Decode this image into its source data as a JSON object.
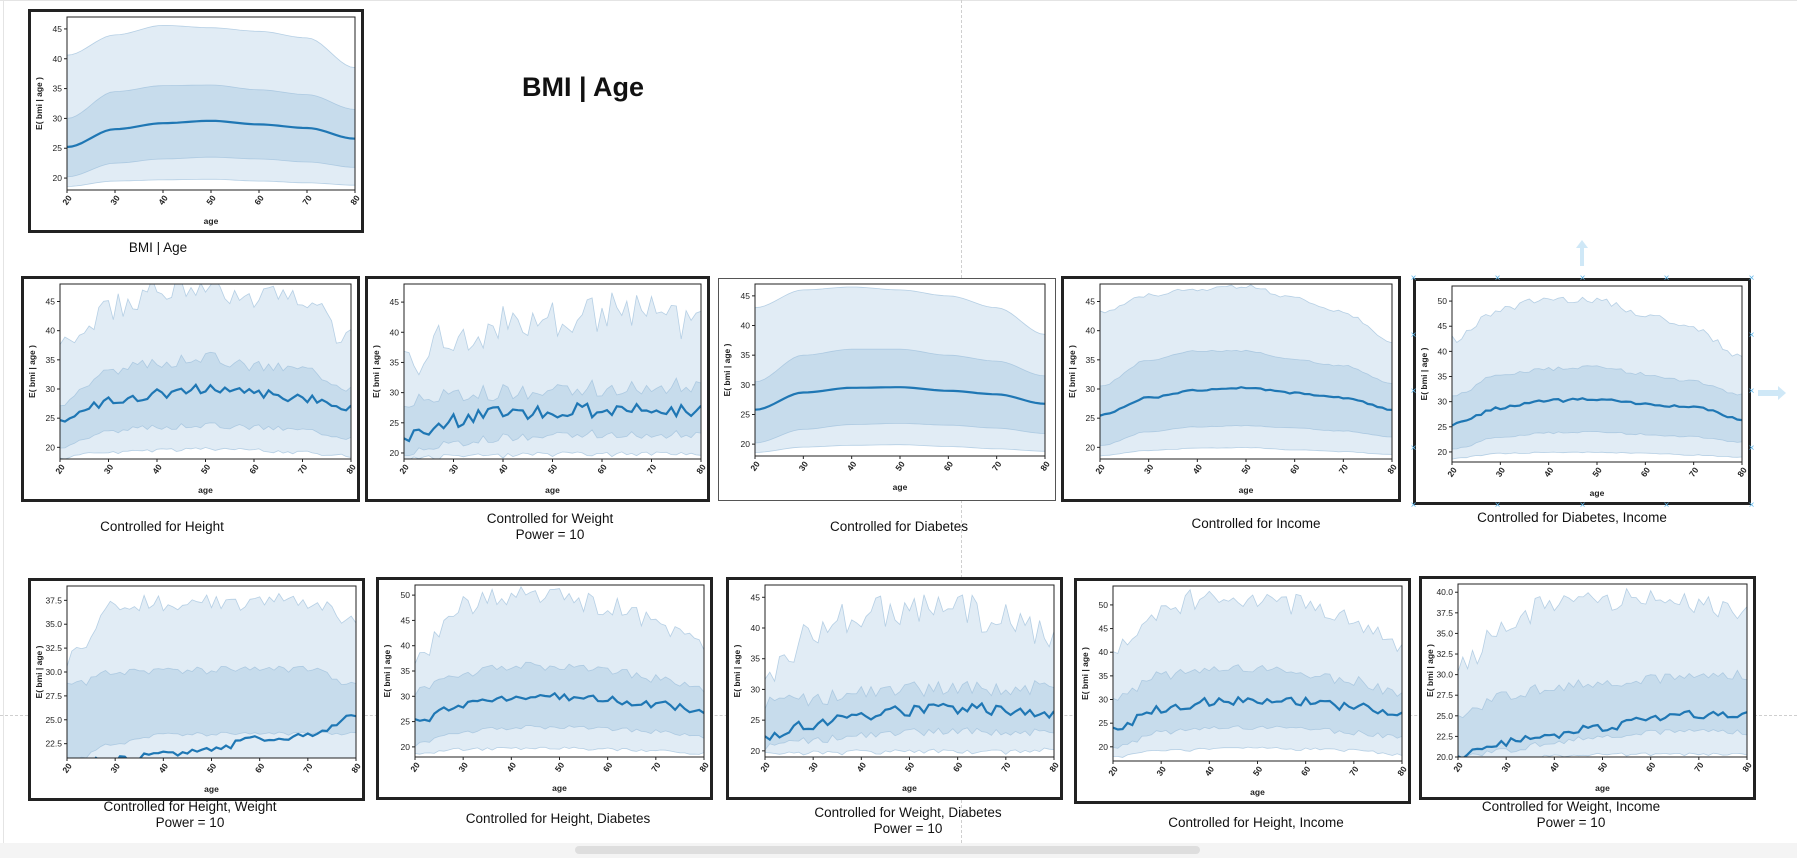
{
  "page": {
    "title": "BMI | Age"
  },
  "chart_data": [
    {
      "id": "main",
      "type": "line",
      "thin": false,
      "caption": [
        "BMI | Age"
      ],
      "xlabel": "age",
      "ylabel": "E( bmi | age )",
      "xlim": [
        20,
        80
      ],
      "ylim": [
        18,
        47
      ],
      "xticks": [
        20,
        30,
        40,
        50,
        60,
        70,
        80
      ],
      "yticks": [
        20,
        25,
        30,
        35,
        40,
        45
      ],
      "x": [
        20,
        30,
        40,
        50,
        60,
        70,
        80
      ],
      "mean": [
        25.2,
        28.2,
        29.2,
        29.6,
        29.0,
        28.4,
        26.6
      ],
      "inner": [
        [
          20.2,
          30.0
        ],
        [
          22.5,
          34.5
        ],
        [
          23.2,
          35.5
        ],
        [
          23.5,
          35.6
        ],
        [
          23.2,
          34.8
        ],
        [
          22.7,
          34.0
        ],
        [
          21.8,
          31.5
        ]
      ],
      "outer": [
        [
          18.6,
          40.6
        ],
        [
          19.5,
          44.0
        ],
        [
          19.7,
          45.6
        ],
        [
          19.8,
          45.2
        ],
        [
          19.5,
          44.6
        ],
        [
          19.2,
          43.5
        ],
        [
          18.8,
          38.5
        ]
      ],
      "noise": 0
    },
    {
      "id": "height",
      "type": "line",
      "thin": false,
      "caption": [
        "Controlled for Height"
      ],
      "xlabel": "age",
      "ylabel": "E( bmi | age )",
      "xlim": [
        20,
        80
      ],
      "ylim": [
        18,
        48
      ],
      "xticks": [
        20,
        30,
        40,
        50,
        60,
        70,
        80
      ],
      "yticks": [
        20,
        25,
        30,
        35,
        40,
        45
      ],
      "x": [
        20,
        30,
        40,
        50,
        60,
        70,
        80
      ],
      "mean": [
        24.5,
        27.8,
        29.2,
        30.0,
        29.2,
        28.5,
        26.6
      ],
      "inner": [
        [
          20.3,
          28.0
        ],
        [
          22.7,
          33.0
        ],
        [
          23.5,
          34.5
        ],
        [
          23.8,
          35.5
        ],
        [
          23.5,
          34.0
        ],
        [
          23.0,
          33.5
        ],
        [
          21.8,
          30.5
        ]
      ],
      "outer": [
        [
          18.5,
          36.0
        ],
        [
          19.5,
          43.0
        ],
        [
          19.8,
          46.0
        ],
        [
          20.0,
          46.5
        ],
        [
          19.8,
          45.0
        ],
        [
          19.4,
          44.0
        ],
        [
          18.8,
          37.5
        ]
      ],
      "noise": 1.4
    },
    {
      "id": "weight",
      "type": "line",
      "thin": false,
      "caption": [
        "Controlled for Weight",
        "Power = 10"
      ],
      "xlabel": "age",
      "ylabel": "E( bmi | age )",
      "xlim": [
        20,
        80
      ],
      "ylim": [
        19,
        48
      ],
      "xticks": [
        20,
        30,
        40,
        50,
        60,
        70,
        80
      ],
      "yticks": [
        20,
        25,
        30,
        35,
        40,
        45
      ],
      "x": [
        20,
        30,
        40,
        50,
        60,
        70,
        80
      ],
      "mean": [
        22.5,
        25.3,
        26.5,
        27.0,
        27.1,
        27.0,
        26.8
      ],
      "inner": [
        [
          20.0,
          28.5
        ],
        [
          21.5,
          29.5
        ],
        [
          22.5,
          30.0
        ],
        [
          23.0,
          30.5
        ],
        [
          23.2,
          30.8
        ],
        [
          23.0,
          31.0
        ],
        [
          23.0,
          31.0
        ]
      ],
      "outer": [
        [
          19.3,
          34.0
        ],
        [
          19.8,
          38.0
        ],
        [
          20.0,
          40.0
        ],
        [
          20.2,
          41.0
        ],
        [
          20.3,
          42.0
        ],
        [
          20.2,
          43.0
        ],
        [
          20.5,
          39.0
        ]
      ],
      "noise": 2.0
    },
    {
      "id": "diabetes",
      "type": "line",
      "thin": true,
      "caption": [
        "Controlled for Diabetes"
      ],
      "xlabel": "age",
      "ylabel": "E( bmi | age )",
      "xlim": [
        20,
        80
      ],
      "ylim": [
        18,
        47
      ],
      "xticks": [
        20,
        30,
        40,
        50,
        60,
        70,
        80
      ],
      "yticks": [
        20,
        25,
        30,
        35,
        40,
        45
      ],
      "x": [
        20,
        30,
        40,
        50,
        60,
        70,
        80
      ],
      "mean": [
        25.8,
        28.7,
        29.5,
        29.6,
        29.0,
        28.4,
        26.8
      ],
      "inner": [
        [
          20.2,
          30.5
        ],
        [
          22.5,
          35.0
        ],
        [
          23.3,
          36.0
        ],
        [
          23.5,
          36.0
        ],
        [
          23.2,
          35.0
        ],
        [
          22.7,
          34.0
        ],
        [
          21.8,
          31.5
        ]
      ],
      "outer": [
        [
          18.6,
          43.0
        ],
        [
          19.5,
          46.0
        ],
        [
          19.8,
          46.5
        ],
        [
          19.9,
          46.0
        ],
        [
          19.6,
          45.0
        ],
        [
          19.2,
          43.0
        ],
        [
          18.8,
          38.5
        ]
      ],
      "noise": 0
    },
    {
      "id": "income",
      "type": "line",
      "thin": false,
      "caption": [
        "Controlled for Income"
      ],
      "xlabel": "age",
      "ylabel": "E( bmi | age )",
      "xlim": [
        20,
        80
      ],
      "ylim": [
        18,
        48
      ],
      "xticks": [
        20,
        30,
        40,
        50,
        60,
        70,
        80
      ],
      "yticks": [
        20,
        25,
        30,
        35,
        40,
        45
      ],
      "x": [
        20,
        30,
        40,
        50,
        60,
        70,
        80
      ],
      "mean": [
        25.5,
        28.5,
        29.8,
        30.2,
        29.3,
        28.5,
        26.5
      ],
      "inner": [
        [
          20.3,
          30.5
        ],
        [
          22.7,
          35.0
        ],
        [
          23.5,
          36.5
        ],
        [
          23.7,
          36.5
        ],
        [
          23.3,
          35.0
        ],
        [
          22.8,
          34.0
        ],
        [
          21.8,
          31.0
        ]
      ],
      "outer": [
        [
          18.6,
          43.0
        ],
        [
          19.5,
          46.0
        ],
        [
          19.9,
          47.0
        ],
        [
          20.0,
          47.5
        ],
        [
          19.6,
          45.5
        ],
        [
          19.3,
          43.0
        ],
        [
          18.8,
          38.0
        ]
      ],
      "noise": 0.2
    },
    {
      "id": "diabetes-income",
      "type": "line",
      "thin": false,
      "caption": [
        "Controlled for Diabetes, Income"
      ],
      "xlabel": "age",
      "ylabel": "E( bmi | age )",
      "xlim": [
        20,
        80
      ],
      "ylim": [
        18,
        53
      ],
      "xticks": [
        20,
        30,
        40,
        50,
        60,
        70,
        80
      ],
      "yticks": [
        20,
        25,
        30,
        35,
        40,
        45,
        50
      ],
      "x": [
        20,
        30,
        40,
        50,
        60,
        70,
        80
      ],
      "mean": [
        25.5,
        28.8,
        30.2,
        30.5,
        29.5,
        28.8,
        26.5
      ],
      "inner": [
        [
          20.5,
          31.0
        ],
        [
          23.0,
          35.5
        ],
        [
          23.8,
          36.5
        ],
        [
          24.0,
          37.0
        ],
        [
          23.5,
          35.5
        ],
        [
          23.0,
          34.0
        ],
        [
          22.0,
          31.5
        ]
      ],
      "outer": [
        [
          18.8,
          42.0
        ],
        [
          19.8,
          48.0
        ],
        [
          20.0,
          50.0
        ],
        [
          20.0,
          50.0
        ],
        [
          19.8,
          47.0
        ],
        [
          19.5,
          44.0
        ],
        [
          19.0,
          39.0
        ]
      ],
      "noise": 0.5
    },
    {
      "id": "height-weight",
      "type": "line",
      "thin": false,
      "caption": [
        "Controlled for Height, Weight",
        "Power = 10"
      ],
      "xlabel": "age",
      "ylabel": "E( bmi | age )",
      "xlim": [
        20,
        80
      ],
      "ylim": [
        21,
        39
      ],
      "xticks": [
        20,
        30,
        40,
        50,
        60,
        70,
        80
      ],
      "yticks": [
        22.5,
        25.0,
        27.5,
        30.0,
        32.5,
        35.0,
        37.5
      ],
      "x": [
        20,
        30,
        40,
        50,
        60,
        70,
        80
      ],
      "mean": [
        20.5,
        20.8,
        21.4,
        22.0,
        23.0,
        23.4,
        25.5
      ],
      "inner": [
        [
          20.5,
          28.5
        ],
        [
          22.5,
          30.0
        ],
        [
          23.5,
          30.2
        ],
        [
          23.5,
          30.2
        ],
        [
          23.5,
          30.2
        ],
        [
          23.5,
          30.2
        ],
        [
          23.5,
          28.5
        ]
      ],
      "outer": [
        [
          20.0,
          31.0
        ],
        [
          20.2,
          36.5
        ],
        [
          20.5,
          36.8
        ],
        [
          20.5,
          36.8
        ],
        [
          20.5,
          37.0
        ],
        [
          20.5,
          36.8
        ],
        [
          20.5,
          35.0
        ]
      ],
      "noise": 0.6
    },
    {
      "id": "height-diabetes",
      "type": "line",
      "thin": false,
      "caption": [
        "Controlled for Height, Diabetes"
      ],
      "xlabel": "age",
      "ylabel": "E( bmi | age )",
      "xlim": [
        20,
        80
      ],
      "ylim": [
        18,
        52
      ],
      "xticks": [
        20,
        30,
        40,
        50,
        60,
        70,
        80
      ],
      "yticks": [
        20,
        25,
        30,
        35,
        40,
        45,
        50
      ],
      "x": [
        20,
        30,
        40,
        50,
        60,
        70,
        80
      ],
      "mean": [
        25.0,
        28.5,
        29.8,
        30.0,
        29.3,
        28.5,
        26.8
      ],
      "inner": [
        [
          20.5,
          31.0
        ],
        [
          23.0,
          34.5
        ],
        [
          23.8,
          36.0
        ],
        [
          24.0,
          36.0
        ],
        [
          23.5,
          35.0
        ],
        [
          23.0,
          33.5
        ],
        [
          22.0,
          31.5
        ]
      ],
      "outer": [
        [
          18.8,
          37.0
        ],
        [
          19.8,
          47.0
        ],
        [
          20.0,
          49.0
        ],
        [
          20.0,
          49.0
        ],
        [
          19.8,
          47.0
        ],
        [
          19.5,
          44.0
        ],
        [
          19.0,
          38.5
        ]
      ],
      "noise": 1.3
    },
    {
      "id": "weight-diabetes",
      "type": "line",
      "thin": false,
      "caption": [
        "Controlled for Weight, Diabetes",
        "Power = 10"
      ],
      "xlabel": "age",
      "ylabel": "E( bmi | age )",
      "xlim": [
        20,
        80
      ],
      "ylim": [
        19,
        47
      ],
      "xticks": [
        20,
        30,
        40,
        50,
        60,
        70,
        80
      ],
      "yticks": [
        20,
        25,
        30,
        35,
        40,
        45
      ],
      "x": [
        20,
        30,
        40,
        50,
        60,
        70,
        80
      ],
      "mean": [
        22.0,
        24.5,
        25.8,
        26.5,
        26.8,
        26.6,
        26.4
      ],
      "inner": [
        [
          20.5,
          27.5
        ],
        [
          21.8,
          28.5
        ],
        [
          22.5,
          29.5
        ],
        [
          23.0,
          30.0
        ],
        [
          23.2,
          30.2
        ],
        [
          23.0,
          30.0
        ],
        [
          23.0,
          30.5
        ]
      ],
      "outer": [
        [
          19.8,
          32.0
        ],
        [
          20.0,
          38.0
        ],
        [
          20.2,
          41.0
        ],
        [
          20.3,
          42.0
        ],
        [
          20.3,
          42.0
        ],
        [
          20.2,
          40.0
        ],
        [
          20.5,
          38.0
        ]
      ],
      "noise": 1.8
    },
    {
      "id": "height-income",
      "type": "line",
      "thin": false,
      "caption": [
        "Controlled for Height, Income"
      ],
      "xlabel": "age",
      "ylabel": "E( bmi | age )",
      "xlim": [
        20,
        80
      ],
      "ylim": [
        17,
        54
      ],
      "xticks": [
        20,
        30,
        40,
        50,
        60,
        70,
        80
      ],
      "yticks": [
        20,
        25,
        30,
        35,
        40,
        45,
        50
      ],
      "x": [
        20,
        30,
        40,
        50,
        60,
        70,
        80
      ],
      "mean": [
        24.0,
        28.0,
        29.5,
        30.0,
        29.5,
        28.5,
        27.0
      ],
      "inner": [
        [
          20.0,
          30.5
        ],
        [
          23.0,
          35.0
        ],
        [
          23.8,
          36.0
        ],
        [
          24.0,
          36.5
        ],
        [
          23.8,
          35.0
        ],
        [
          23.0,
          34.0
        ],
        [
          22.0,
          31.0
        ]
      ],
      "outer": [
        [
          18.0,
          40.0
        ],
        [
          19.5,
          48.0
        ],
        [
          19.8,
          51.0
        ],
        [
          20.0,
          51.0
        ],
        [
          19.8,
          49.0
        ],
        [
          19.5,
          46.0
        ],
        [
          18.5,
          40.0
        ]
      ],
      "noise": 1.5
    },
    {
      "id": "weight-income",
      "type": "line",
      "thin": false,
      "caption": [
        "Controlled for Weight, Income",
        "Power = 10"
      ],
      "xlabel": "age",
      "ylabel": "E( bmi | age )",
      "xlim": [
        20,
        80
      ],
      "ylim": [
        20,
        41
      ],
      "xticks": [
        20,
        30,
        40,
        50,
        60,
        70,
        80
      ],
      "yticks": [
        20.0,
        22.5,
        25.0,
        27.5,
        30.0,
        32.5,
        35.0,
        37.5,
        40.0
      ],
      "x": [
        20,
        30,
        40,
        50,
        60,
        70,
        80
      ],
      "mean": [
        20.2,
        21.8,
        22.8,
        23.6,
        24.5,
        25.2,
        25.2
      ],
      "inner": [
        [
          20.0,
          25.0
        ],
        [
          20.8,
          27.5
        ],
        [
          21.8,
          28.5
        ],
        [
          22.5,
          29.0
        ],
        [
          23.0,
          29.5
        ],
        [
          23.2,
          29.8
        ],
        [
          23.0,
          30.0
        ]
      ],
      "outer": [
        [
          20.0,
          30.0
        ],
        [
          20.0,
          36.0
        ],
        [
          20.3,
          38.0
        ],
        [
          20.5,
          38.5
        ],
        [
          20.5,
          38.5
        ],
        [
          20.5,
          38.0
        ],
        [
          20.5,
          37.0
        ]
      ],
      "noise": 0.9
    }
  ],
  "colors": {
    "line": "#1f77b4",
    "band_inner": "#c7dcec",
    "band_outer": "#e1ecf5",
    "band_edge": "#9cbfdc",
    "handle": "#5fb5e8"
  }
}
